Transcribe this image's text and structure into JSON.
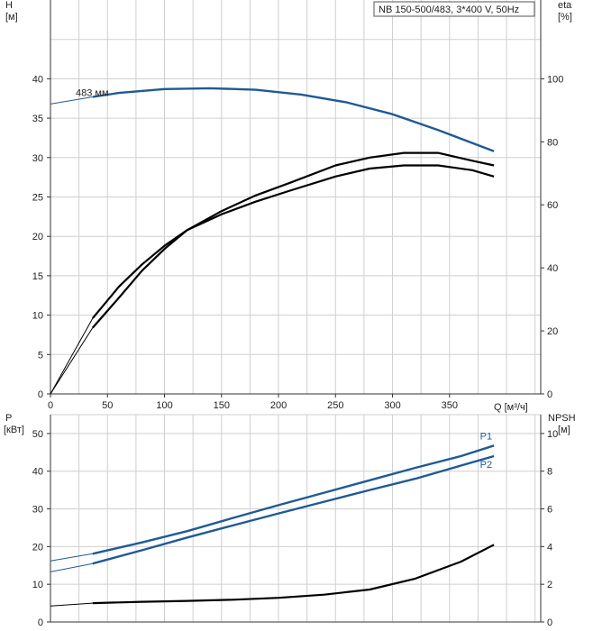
{
  "chart_data": [
    {
      "type": "line",
      "panel": "head-efficiency",
      "title": "NB 150-500/483, 3*400 V, 50Hz",
      "ylabel": "H",
      "ylabel_unit": "[м]",
      "y2label": "eta",
      "y2label_unit": "[%]",
      "xlabel": "Q [м³/ч]",
      "xlim": [
        0,
        430
      ],
      "ylim": [
        0,
        50
      ],
      "y2lim": [
        0,
        125
      ],
      "x_ticks": [
        0,
        50,
        100,
        150,
        200,
        250,
        300,
        350
      ],
      "y_ticks": [
        0,
        5,
        10,
        15,
        20,
        25,
        30,
        35,
        40
      ],
      "y2_ticks": [
        0,
        20,
        40,
        60,
        80,
        100
      ],
      "grid": true,
      "series": [
        {
          "name": "483 мм",
          "axis": "y",
          "color": "#1f5a96",
          "x": [
            0,
            37,
            60,
            100,
            140,
            180,
            220,
            260,
            300,
            340,
            389
          ],
          "y": [
            36.8,
            37.7,
            38.2,
            38.7,
            38.8,
            38.6,
            38.0,
            37.0,
            35.5,
            33.5,
            30.8
          ]
        },
        {
          "axis": "y2",
          "color": "#000000",
          "x": [
            0,
            37,
            60,
            80,
            100,
            120,
            150,
            180,
            210,
            250,
            280,
            310,
            340,
            370,
            389
          ],
          "y": [
            0,
            24,
            34,
            41,
            47,
            52,
            58,
            63,
            67,
            72.5,
            75,
            76.5,
            76.5,
            74,
            72.5
          ]
        },
        {
          "axis": "y2",
          "color": "#000000",
          "x": [
            0,
            37,
            60,
            80,
            100,
            120,
            150,
            180,
            210,
            250,
            280,
            310,
            340,
            370,
            389
          ],
          "y": [
            0,
            21,
            30.5,
            39,
            46,
            52,
            57,
            61,
            64.5,
            69,
            71.5,
            72.5,
            72.5,
            71,
            69
          ]
        }
      ]
    },
    {
      "type": "line",
      "panel": "power-npsh",
      "ylabel": "P",
      "ylabel_unit": "[кВт]",
      "y2label": "NPSH",
      "y2label_unit": "[м]",
      "xlim": [
        0,
        430
      ],
      "ylim": [
        0,
        55
      ],
      "y2lim": [
        0,
        11
      ],
      "y_ticks": [
        0,
        10,
        20,
        30,
        40,
        50
      ],
      "y2_ticks": [
        0,
        2,
        4,
        6,
        8,
        10
      ],
      "grid": true,
      "series": [
        {
          "name": "P1",
          "axis": "y",
          "color": "#1f5a96",
          "x": [
            0,
            37,
            80,
            120,
            160,
            200,
            240,
            280,
            320,
            360,
            389
          ],
          "y": [
            16.2,
            18.1,
            21.1,
            24.1,
            27.6,
            31.0,
            34.3,
            37.6,
            40.9,
            44.0,
            46.8
          ]
        },
        {
          "name": "P2",
          "axis": "y",
          "color": "#1f5a96",
          "x": [
            0,
            37,
            80,
            120,
            160,
            200,
            240,
            280,
            320,
            360,
            389
          ],
          "y": [
            13.3,
            15.5,
            19.0,
            22.4,
            25.6,
            28.8,
            31.9,
            35.0,
            38.0,
            41.5,
            44.0
          ]
        },
        {
          "axis": "y2",
          "color": "#000000",
          "x": [
            0,
            37,
            80,
            120,
            160,
            200,
            240,
            280,
            320,
            360,
            389
          ],
          "y": [
            0.85,
            1.0,
            1.07,
            1.12,
            1.18,
            1.28,
            1.45,
            1.72,
            2.3,
            3.2,
            4.1
          ]
        }
      ]
    }
  ]
}
